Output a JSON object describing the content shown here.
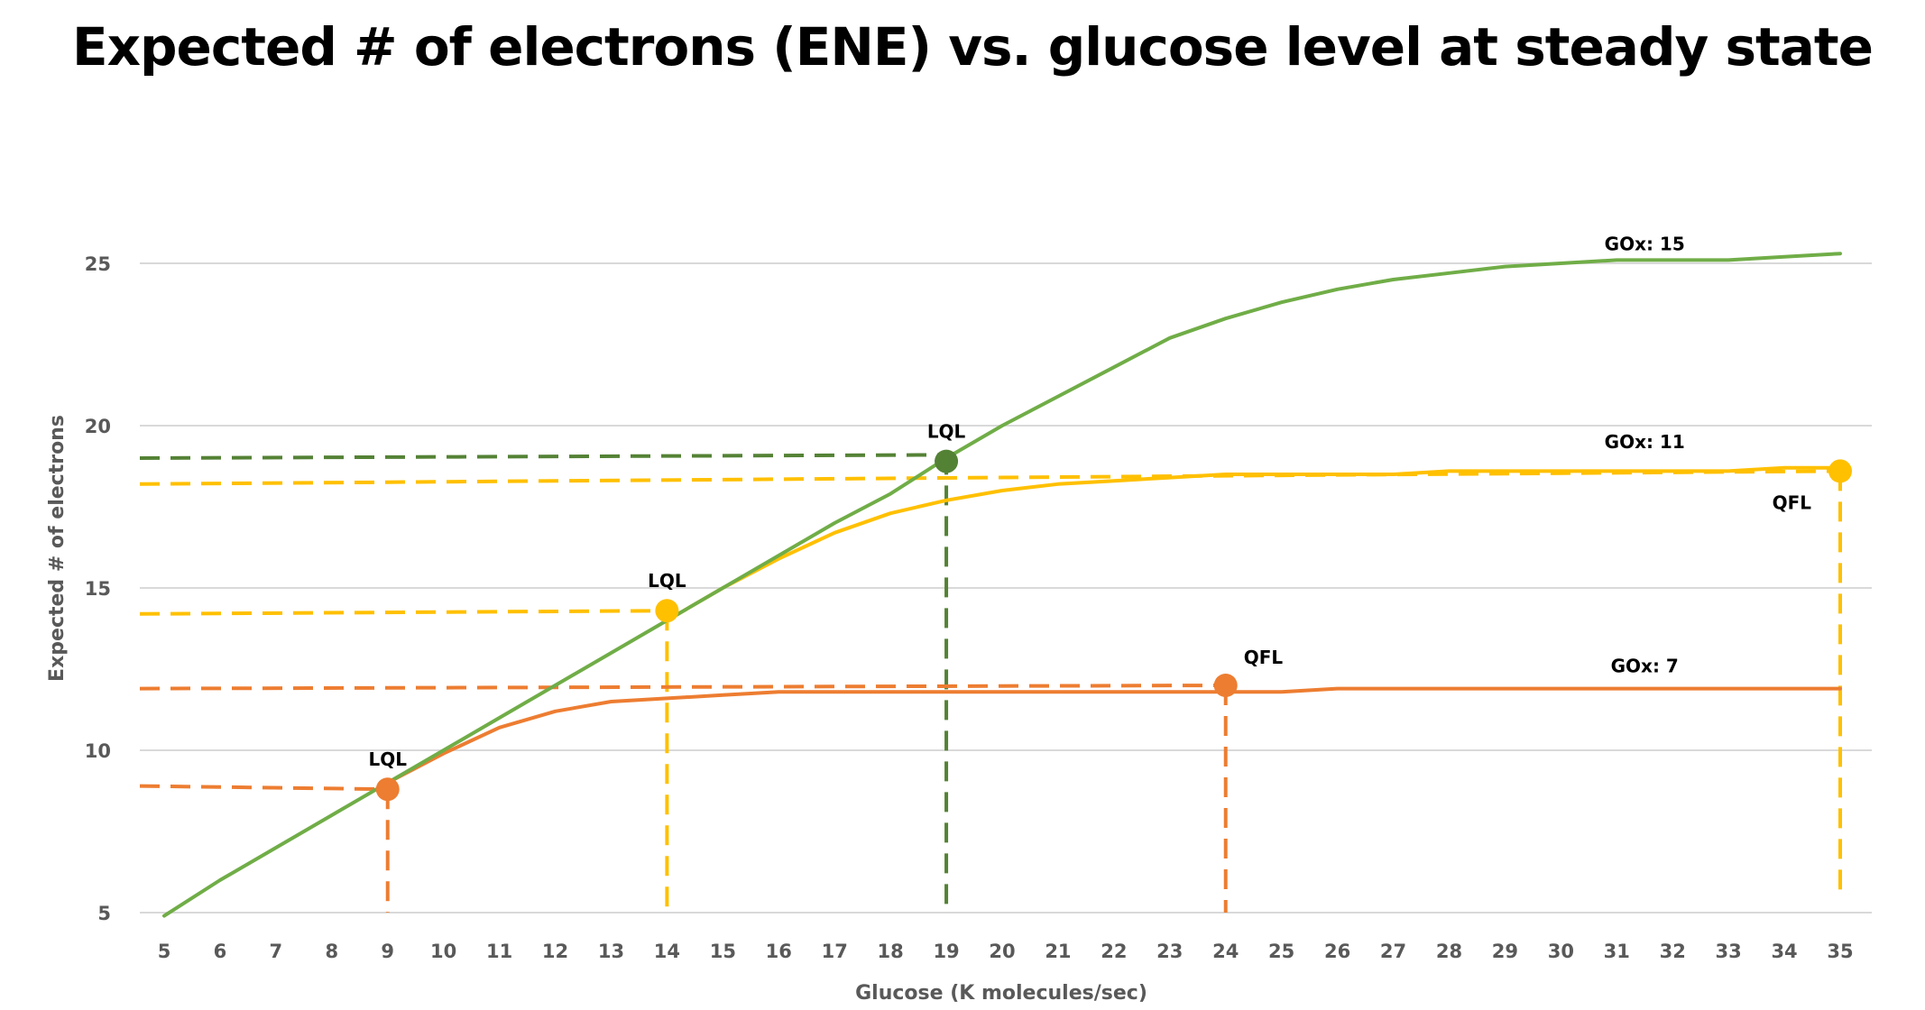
{
  "chart_data": {
    "type": "line",
    "title": "Expected # of electrons (ENE) vs. glucose level at steady state",
    "xlabel": "Glucose (K molecules/sec)",
    "ylabel": "Expected # of electrons",
    "xlim": [
      5,
      35
    ],
    "ylim": [
      5,
      25
    ],
    "x_ticks": [
      5,
      6,
      7,
      8,
      9,
      10,
      11,
      12,
      13,
      14,
      15,
      16,
      17,
      18,
      19,
      20,
      21,
      22,
      23,
      24,
      25,
      26,
      27,
      28,
      29,
      30,
      31,
      32,
      33,
      34,
      35
    ],
    "y_ticks": [
      5,
      10,
      15,
      20,
      25
    ],
    "grid": "horizontal",
    "legend": "none",
    "series": [
      {
        "name": "GOx: 15",
        "color": "#70AD47",
        "x": [
          5,
          6,
          7,
          8,
          9,
          10,
          11,
          12,
          13,
          14,
          15,
          16,
          17,
          18,
          19,
          20,
          21,
          22,
          23,
          24,
          25,
          26,
          27,
          28,
          29,
          30,
          31,
          32,
          33,
          34,
          35
        ],
        "values": [
          4.9,
          6.0,
          7.0,
          8.0,
          9.0,
          10.0,
          11.0,
          12.0,
          13.0,
          14.0,
          15.0,
          16.0,
          17.0,
          17.9,
          19.0,
          20.0,
          20.9,
          21.8,
          22.7,
          23.3,
          23.8,
          24.2,
          24.5,
          24.7,
          24.9,
          25.0,
          25.1,
          25.1,
          25.1,
          25.2,
          25.3
        ]
      },
      {
        "name": "GOx: 11",
        "color": "#FFC000",
        "x": [
          14,
          15,
          16,
          17,
          18,
          19,
          20,
          21,
          22,
          23,
          24,
          25,
          26,
          27,
          28,
          29,
          30,
          31,
          32,
          33,
          34,
          35
        ],
        "values": [
          14.0,
          15.0,
          15.9,
          16.7,
          17.3,
          17.7,
          18.0,
          18.2,
          18.3,
          18.4,
          18.5,
          18.5,
          18.5,
          18.5,
          18.6,
          18.6,
          18.6,
          18.6,
          18.6,
          18.6,
          18.7,
          18.7
        ]
      },
      {
        "name": "GOx: 7",
        "color": "#ED7D31",
        "x": [
          9,
          10,
          11,
          12,
          13,
          14,
          15,
          16,
          17,
          18,
          19,
          20,
          21,
          22,
          23,
          24,
          25,
          26,
          27,
          28,
          29,
          30,
          31,
          32,
          33,
          34,
          35
        ],
        "values": [
          9.0,
          9.9,
          10.7,
          11.2,
          11.5,
          11.6,
          11.7,
          11.8,
          11.8,
          11.8,
          11.8,
          11.8,
          11.8,
          11.8,
          11.8,
          11.8,
          11.8,
          11.9,
          11.9,
          11.9,
          11.9,
          11.9,
          11.9,
          11.9,
          11.9,
          11.9,
          11.9
        ]
      }
    ],
    "markers": [
      {
        "label": "LQL",
        "x": 9,
        "y": 8.8,
        "color": "#ED7D31",
        "label_pos": "above"
      },
      {
        "label": "QFL",
        "x": 24,
        "y": 12.0,
        "color": "#ED7D31",
        "label_pos": "above-right"
      },
      {
        "label": "LQL",
        "x": 14,
        "y": 14.3,
        "color": "#FFC000",
        "label_pos": "above"
      },
      {
        "label": "QFL",
        "x": 35,
        "y": 18.6,
        "color": "#FFC000",
        "label_pos": "below-left"
      },
      {
        "label": "LQL",
        "x": 19,
        "y": 18.9,
        "color": "#548235",
        "label_pos": "above"
      }
    ],
    "series_labels": [
      {
        "text": "GOx: 15",
        "x": 31.5,
        "y": 25.4
      },
      {
        "text": "GOx: 11",
        "x": 31.5,
        "y": 19.3
      },
      {
        "text": "GOx: 7",
        "x": 31.5,
        "y": 12.4
      }
    ],
    "dashed_guides": [
      {
        "color": "#548235",
        "y_from": 19.0,
        "y_to": 19.1,
        "x_end": 19,
        "vertical_to": 5
      },
      {
        "color": "#FFC000",
        "y_from": 18.2,
        "y_to": 18.6,
        "x_end": 35,
        "vertical_to": 5.6
      },
      {
        "color": "#FFC000",
        "y_from": 14.2,
        "y_to": 14.3,
        "x_end": 14,
        "vertical_to": 5
      },
      {
        "color": "#ED7D31",
        "y_from": 11.9,
        "y_to": 12.0,
        "x_end": 24,
        "vertical_to": 5
      },
      {
        "color": "#ED7D31",
        "y_from": 8.9,
        "y_to": 8.8,
        "x_end": 9,
        "vertical_to": 5
      }
    ]
  }
}
